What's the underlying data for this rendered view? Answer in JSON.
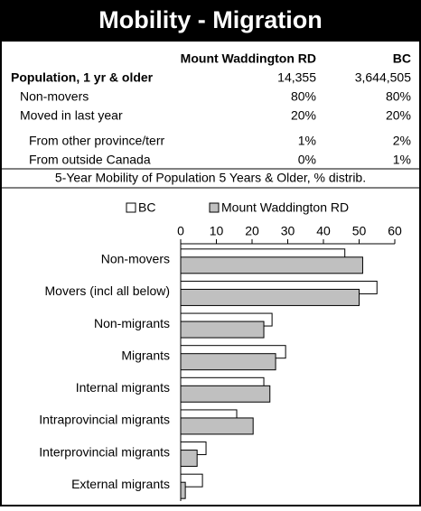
{
  "title": "Mobility - Migration",
  "table": {
    "header": [
      "Mount Waddington RD",
      "BC"
    ],
    "rows": [
      {
        "label": "Population, 1 yr & older",
        "cells": [
          "14,355",
          "3,644,505"
        ]
      },
      {
        "label": "Non-movers",
        "cells": [
          "80%",
          "80%"
        ]
      },
      {
        "label": "Moved in last year",
        "cells": [
          "20%",
          "20%"
        ]
      },
      {
        "label": "From other province/terr",
        "cells": [
          "1%",
          "2%"
        ]
      },
      {
        "label": "From outside Canada",
        "cells": [
          "0%",
          "1%"
        ]
      }
    ]
  },
  "chart_data": {
    "type": "bar",
    "orientation": "horizontal",
    "title": "5-Year Mobility of Population 5 Years & Older, % distrib.",
    "categories": [
      "Non-movers",
      "Movers (incl all below)",
      "Non-migrants",
      "Migrants",
      "Internal migrants",
      "Intraprovincial migrants",
      "Interprovincial migrants",
      "External migrants"
    ],
    "series": [
      {
        "name": "BC",
        "color": "#ffffff",
        "values": [
          46,
          55,
          25.6,
          29.4,
          23.3,
          15.7,
          7.1,
          6.1
        ]
      },
      {
        "name": "Mount Waddington RD",
        "color": "#c0c0c0",
        "values": [
          51,
          50,
          23.3,
          26.6,
          25,
          20.3,
          4.6,
          1.3
        ]
      }
    ],
    "xlim": [
      0,
      60
    ],
    "xticks": [
      0,
      10,
      20,
      30,
      40,
      50,
      60
    ],
    "legend": "top"
  }
}
